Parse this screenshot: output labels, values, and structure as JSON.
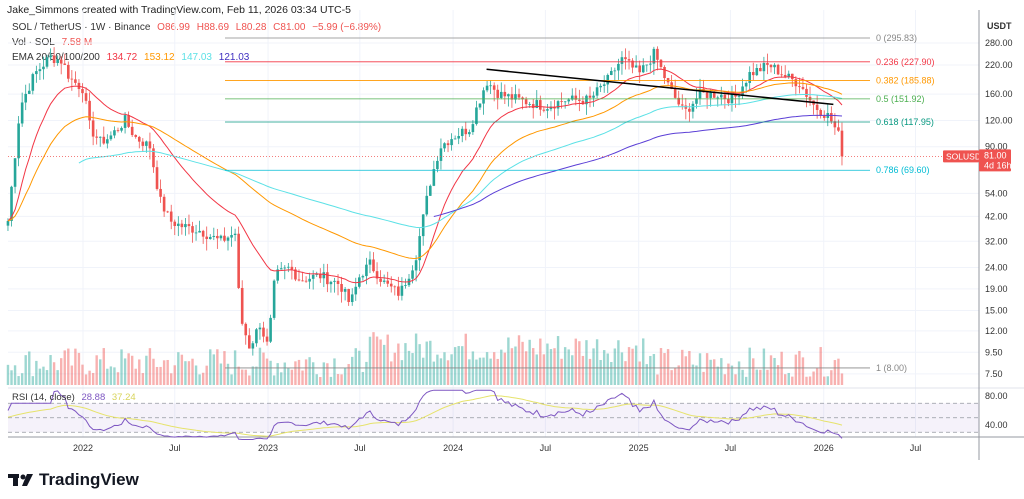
{
  "header": "Jake_Simmons created with TradingView.com, Feb 11, 2026 03:34 UTC-5",
  "legend": {
    "symbol": "SOL / TetherUS · 1W · Binance",
    "open": "O86.99",
    "high": "H88.69",
    "low": "L80.28",
    "close": "C81.00",
    "change": "−5.99 (−6.89%)",
    "vol_label": "Vol · SOL",
    "vol_value": "7.58 M",
    "ema_label": "EMA 20/50/100/200",
    "ema20": "134.72",
    "ema50": "153.12",
    "ema100": "147.03",
    "ema200": "121.03",
    "rsi_label": "RSI (14, close)",
    "rsi_value": "28.88",
    "rsi_ma": "37.24"
  },
  "colors": {
    "up": "#26a69a",
    "down": "#ef5350",
    "ema20": "#f23645",
    "ema50": "#ff9800",
    "ema100": "#5ce1e6",
    "ema200": "#5b3fd6",
    "rsi": "#7e57c2",
    "rsi_ma": "#e6e36b"
  },
  "chart_data": {
    "type": "candlestick",
    "currency": "USDT",
    "scale": "log",
    "price_ticks": [
      "280.00",
      "220.00",
      "160.00",
      "120.00",
      "90.00",
      "54.00",
      "42.00",
      "32.00",
      "24.00",
      "19.00",
      "15.00",
      "12.00",
      "9.50",
      "7.50"
    ],
    "rsi_ticks": [
      "80.00",
      "40.00"
    ],
    "time_ticks": [
      "2022",
      "Jul",
      "2023",
      "Jul",
      "2024",
      "Jul",
      "2025",
      "Jul",
      "2026",
      "Jul"
    ],
    "approx_close": [
      [
        "2021-08-06",
        40
      ],
      [
        "2021-08-30",
        140
      ],
      [
        "2021-09-28",
        200
      ],
      [
        "2021-10-28",
        240
      ],
      [
        "2021-11-21",
        230
      ],
      [
        "2021-12-06",
        190
      ],
      [
        "2022-01-01",
        170
      ],
      [
        "2022-01-15",
        110
      ],
      [
        "2022-02-04",
        95
      ],
      [
        "2022-02-23",
        100
      ],
      [
        "2022-03-25",
        120
      ],
      [
        "2022-04-14",
        100
      ],
      [
        "2022-05-13",
        90
      ],
      [
        "2022-06-02",
        50
      ],
      [
        "2022-06-22",
        40
      ],
      [
        "2022-07-11",
        38
      ],
      [
        "2022-08-20",
        36
      ],
      [
        "2022-09-28",
        32
      ],
      [
        "2022-10-28",
        35
      ],
      [
        "2022-11-07",
        14
      ],
      [
        "2022-11-26",
        10
      ],
      [
        "2022-12-16",
        13
      ],
      [
        "2023-01-01",
        10
      ],
      [
        "2023-01-15",
        22
      ],
      [
        "2023-02-13",
        24
      ],
      [
        "2023-03-05",
        21
      ],
      [
        "2023-04-13",
        22
      ],
      [
        "2023-05-23",
        20
      ],
      [
        "2023-06-12",
        16
      ],
      [
        "2023-07-01",
        22
      ],
      [
        "2023-07-21",
        25
      ],
      [
        "2023-08-20",
        20
      ],
      [
        "2023-09-18",
        18
      ],
      [
        "2023-10-18",
        26
      ],
      [
        "2023-11-16",
        60
      ],
      [
        "2023-12-06",
        90
      ],
      [
        "2023-12-30",
        100
      ],
      [
        "2024-02-02",
        110
      ],
      [
        "2024-03-07",
        185
      ],
      [
        "2024-04-01",
        160
      ],
      [
        "2024-05-11",
        150
      ],
      [
        "2024-07-01",
        140
      ],
      [
        "2024-08-08",
        150
      ],
      [
        "2024-09-26",
        150
      ],
      [
        "2024-11-04",
        190
      ],
      [
        "2024-11-28",
        235
      ],
      [
        "2025-01-03",
        200
      ],
      [
        "2025-02-01",
        250
      ],
      [
        "2025-03-03",
        170
      ],
      [
        "2025-04-01",
        130
      ],
      [
        "2025-05-01",
        160
      ],
      [
        "2025-06-09",
        160
      ],
      [
        "2025-07-07",
        150
      ],
      [
        "2025-08-08",
        200
      ],
      [
        "2025-09-16",
        220
      ],
      [
        "2025-10-25",
        190
      ],
      [
        "2025-11-14",
        180
      ],
      [
        "2025-12-14",
        140
      ],
      [
        "2026-01-12",
        125
      ],
      [
        "2026-02-01",
        100
      ],
      [
        "2026-02-09",
        81
      ]
    ],
    "fib_levels": [
      {
        "label": "0 (295.83)",
        "price": 295.83,
        "color": "#888888"
      },
      {
        "label": "0.236 (227.90)",
        "price": 227.9,
        "color": "#f23645"
      },
      {
        "label": "0.382 (185.88)",
        "price": 185.88,
        "color": "#ff9800"
      },
      {
        "label": "0.5 (151.92)",
        "price": 151.92,
        "color": "#4caf50"
      },
      {
        "label": "0.618 (117.95)",
        "price": 117.95,
        "color": "#089981"
      },
      {
        "label": "0.786 (69.60)",
        "price": 69.6,
        "color": "#00bcd4"
      },
      {
        "label": "1 (8.00)",
        "price": 8.0,
        "color": "#888888"
      }
    ],
    "trendline": [
      [
        "2024-03-07",
        210
      ],
      [
        "2026-01-20",
        143
      ]
    ],
    "last_price": {
      "symbol": "SOLUSDT",
      "price": "81.00",
      "countdown": "4d 16h",
      "value": 81
    }
  },
  "brand": "TradingView"
}
